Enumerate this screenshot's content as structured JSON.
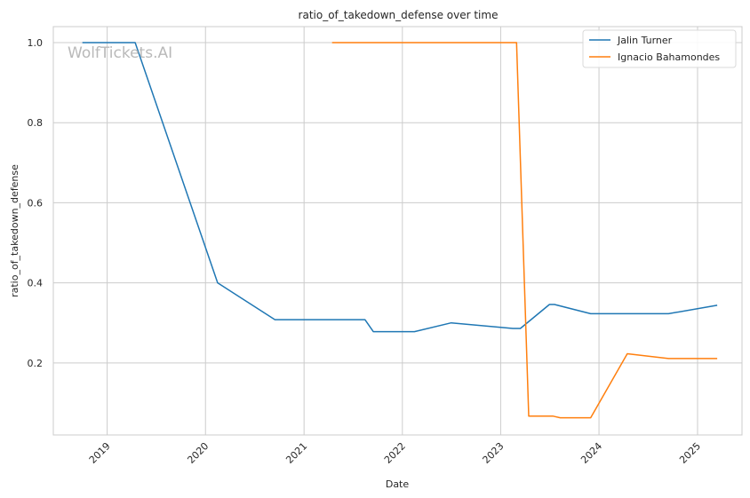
{
  "watermark": "WolfTickets.AI",
  "chart_data": {
    "type": "line",
    "title": "ratio_of_takedown_defense over time",
    "xlabel": "Date",
    "ylabel": "ratio_of_takedown_defense",
    "x_ticks": [
      "2019",
      "2020",
      "2021",
      "2022",
      "2023",
      "2024",
      "2025"
    ],
    "y_ticks": [
      "0.2",
      "0.4",
      "0.6",
      "0.8",
      "1.0"
    ],
    "xlim": [
      "2018-06-15",
      "2025-06-15"
    ],
    "ylim": [
      0.02,
      1.04
    ],
    "grid": true,
    "legend_position": "top-right",
    "series": [
      {
        "name": "Jalin Turner",
        "color": "#1f77b4",
        "points": [
          [
            "2018-10-01",
            1.0
          ],
          [
            "2019-04-15",
            1.0
          ],
          [
            "2020-02-15",
            0.4
          ],
          [
            "2020-09-15",
            0.308
          ],
          [
            "2021-08-15",
            0.308
          ],
          [
            "2021-09-15",
            0.278
          ],
          [
            "2022-02-15",
            0.278
          ],
          [
            "2022-07-01",
            0.3
          ],
          [
            "2023-02-15",
            0.286
          ],
          [
            "2023-03-15",
            0.286
          ],
          [
            "2023-07-01",
            0.346
          ],
          [
            "2023-07-20",
            0.346
          ],
          [
            "2023-12-01",
            0.323
          ],
          [
            "2024-09-15",
            0.323
          ],
          [
            "2025-03-15",
            0.344
          ]
        ]
      },
      {
        "name": "Ignacio Bahamondes",
        "color": "#ff7f0e",
        "points": [
          [
            "2021-04-15",
            1.0
          ],
          [
            "2023-03-01",
            1.0
          ],
          [
            "2023-04-15",
            0.067
          ],
          [
            "2023-07-15",
            0.067
          ],
          [
            "2023-08-10",
            0.063
          ],
          [
            "2023-12-01",
            0.063
          ],
          [
            "2024-04-15",
            0.223
          ],
          [
            "2024-09-15",
            0.211
          ],
          [
            "2025-03-15",
            0.211
          ]
        ]
      }
    ]
  }
}
